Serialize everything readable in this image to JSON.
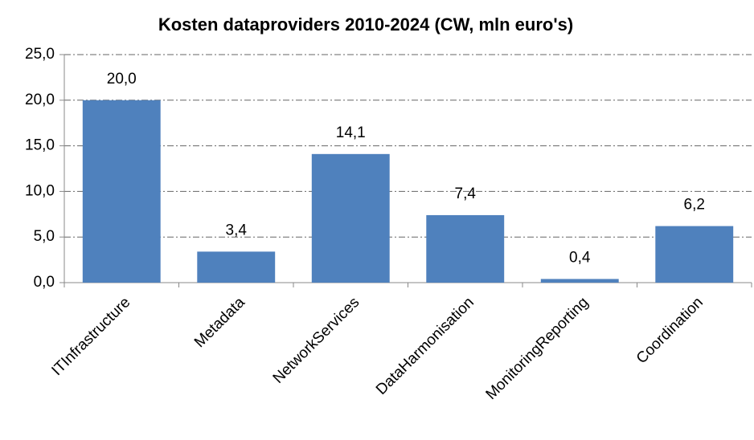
{
  "chart_data": {
    "type": "bar",
    "title": "Kosten dataproviders 2010-2024 (CW, mln euro's)",
    "categories": [
      "ITInfrastructure",
      "Metadata",
      "NetworkServices",
      "DataHarmonisation",
      "MonitoringReporting",
      "Coordination"
    ],
    "values": [
      20.0,
      3.4,
      14.1,
      7.4,
      0.4,
      6.2
    ],
    "value_labels": [
      "20,0",
      "3,4",
      "14,1",
      "7,4",
      "0,4",
      "6,2"
    ],
    "color": "#4f81bd",
    "ylim": [
      0,
      25
    ],
    "yticks": [
      {
        "value": 0,
        "label": "0,0"
      },
      {
        "value": 5,
        "label": "5,0"
      },
      {
        "value": 10,
        "label": "10,0"
      },
      {
        "value": 15,
        "label": "15,0"
      },
      {
        "value": 20,
        "label": "20,0"
      },
      {
        "value": 25,
        "label": "25,0"
      }
    ],
    "grid": true
  }
}
